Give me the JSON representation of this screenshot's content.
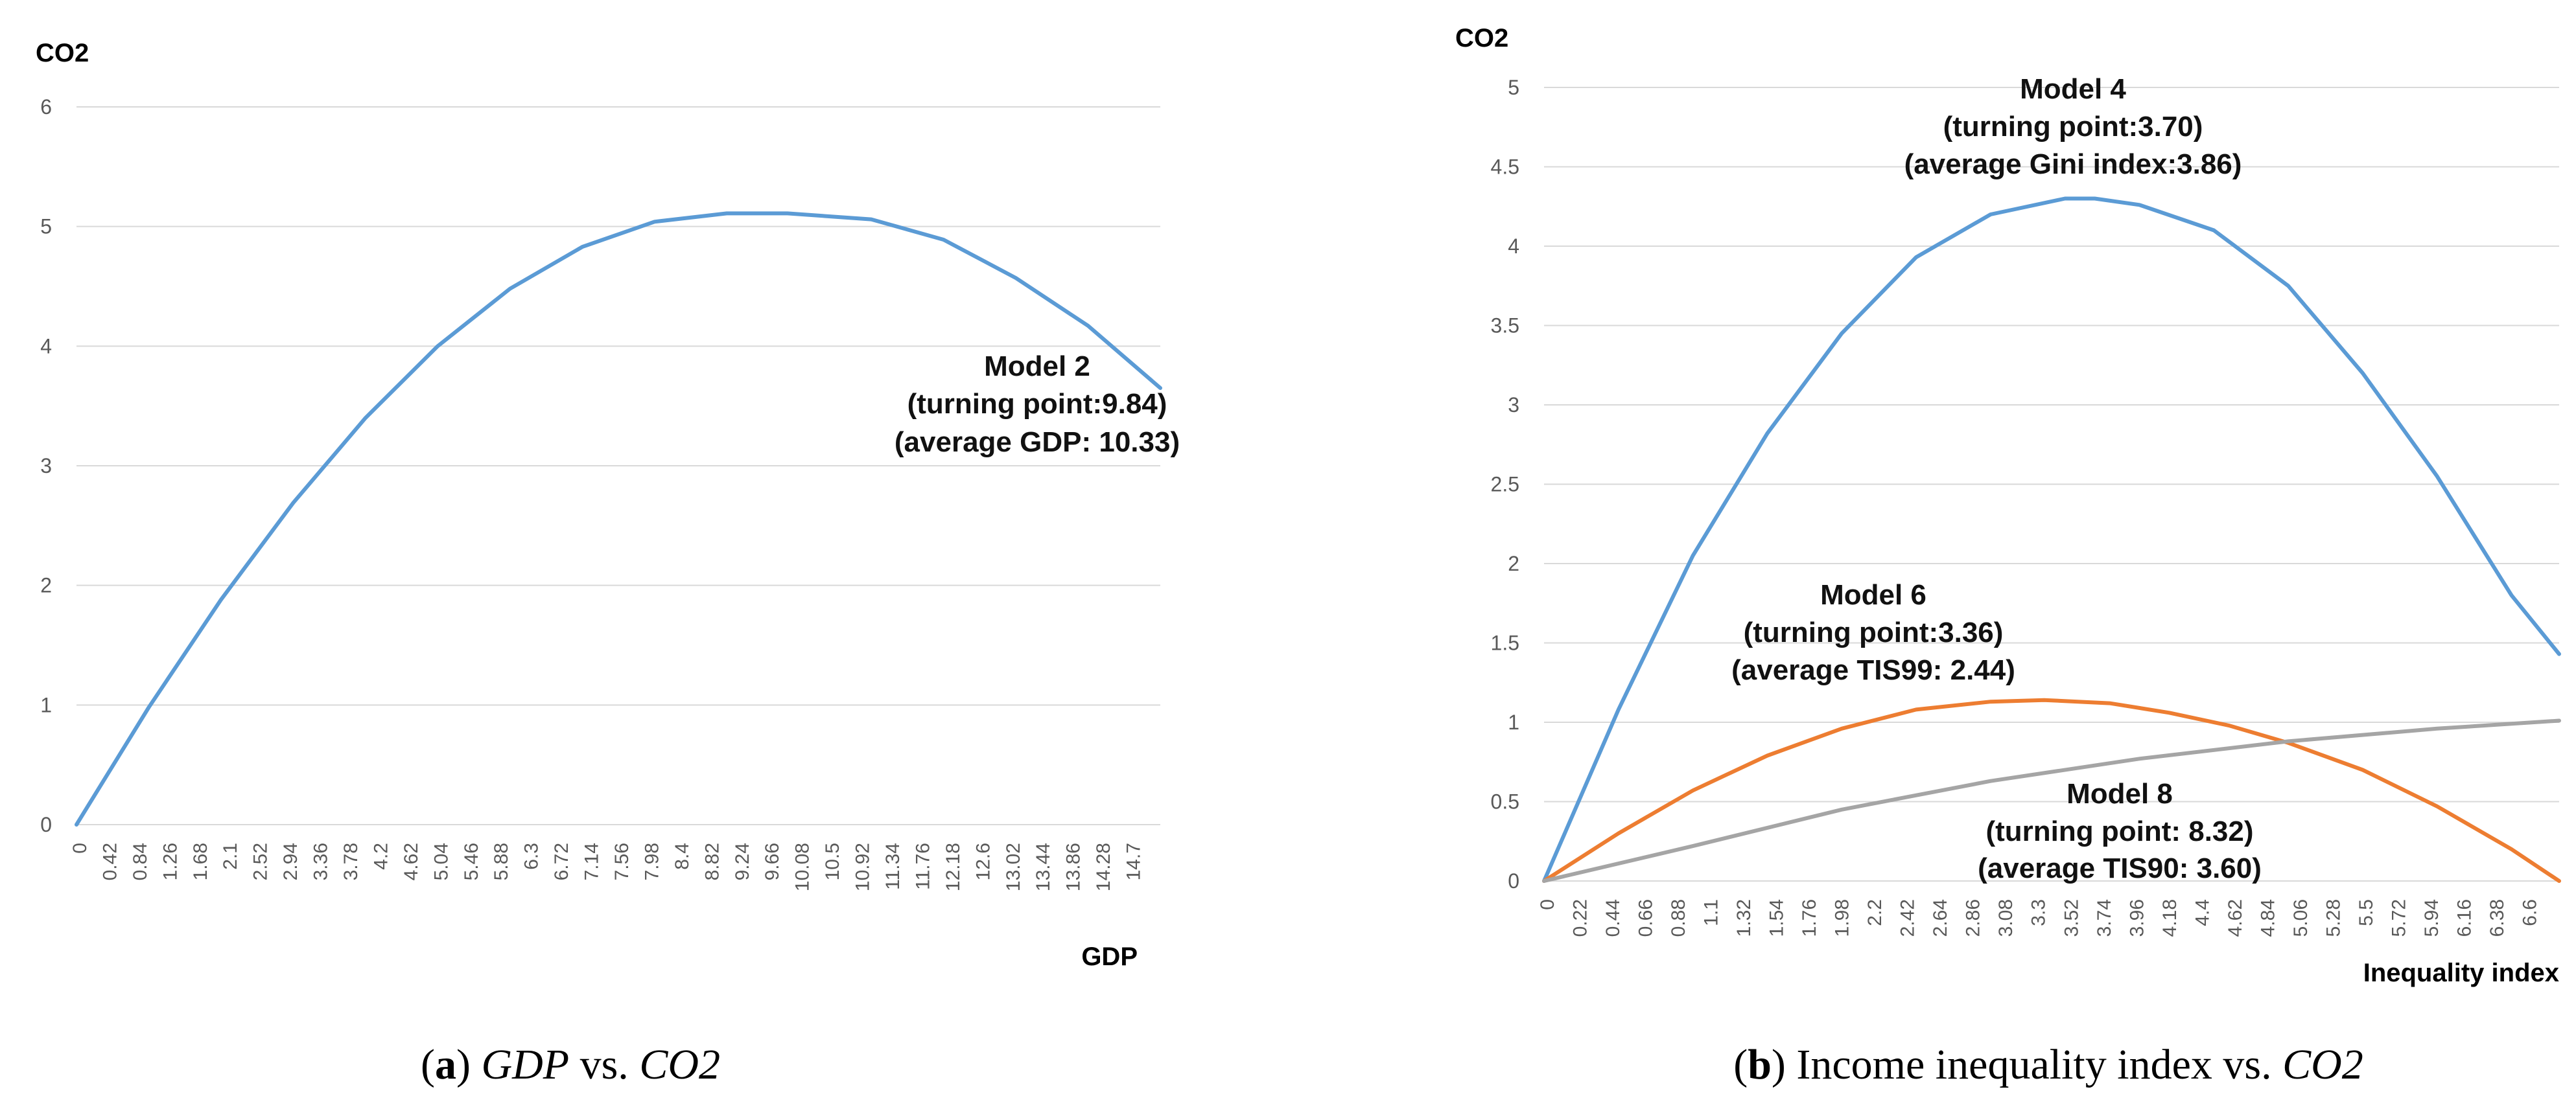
{
  "chart_data": [
    {
      "type": "line",
      "panel_caption": {
        "label": "a",
        "xvar": "GDP",
        "vs": "vs.",
        "yvar": "CO2"
      },
      "ylabel": "CO2",
      "xlabel": "GDP",
      "ylim": [
        0,
        6
      ],
      "yticks": [
        "0",
        "1",
        "2",
        "3",
        "4",
        "5",
        "6"
      ],
      "xticks": [
        "0",
        "0.42",
        "0.84",
        "1.26",
        "1.68",
        "2.1",
        "2.52",
        "2.94",
        "3.36",
        "3.78",
        "4.2",
        "4.62",
        "5.04",
        "5.46",
        "5.88",
        "6.3",
        "6.72",
        "7.14",
        "7.56",
        "7.98",
        "8.4",
        "8.82",
        "9.24",
        "9.66",
        "10.08",
        "10.5",
        "10.92",
        "11.34",
        "11.76",
        "12.18",
        "12.6",
        "13.02",
        "13.44",
        "13.86",
        "14.28",
        "14.7"
      ],
      "grid": true,
      "series": [
        {
          "color": "#5B9BD5",
          "x": [
            0,
            1,
            2,
            3,
            4,
            5,
            6,
            7,
            8,
            9,
            9.84,
            11,
            12,
            13,
            14,
            15
          ],
          "values": [
            0,
            0.98,
            1.88,
            2.69,
            3.4,
            4.0,
            4.48,
            4.83,
            5.04,
            5.11,
            5.11,
            5.06,
            4.89,
            4.57,
            4.17,
            3.65
          ]
        }
      ],
      "annotations": [
        {
          "lines": [
            "Model 2",
            "(turning point:9.84)",
            "(average GDP: 10.33)"
          ]
        }
      ]
    },
    {
      "type": "line",
      "panel_caption": {
        "label": "b",
        "xvar": "Income inequality index",
        "vs": "vs.",
        "yvar": "CO2"
      },
      "ylabel": "CO2",
      "xlabel": "Inequality index",
      "ylim": [
        0,
        5
      ],
      "yticks": [
        "0",
        "0.5",
        "1",
        "1.5",
        "2",
        "2.5",
        "3",
        "3.5",
        "4",
        "4.5",
        "5"
      ],
      "xticks": [
        "0",
        "0.22",
        "0.44",
        "0.66",
        "0.88",
        "1.1",
        "1.32",
        "1.54",
        "1.76",
        "1.98",
        "2.2",
        "2.42",
        "2.64",
        "2.86",
        "3.08",
        "3.3",
        "3.52",
        "3.74",
        "3.96",
        "4.18",
        "4.4",
        "4.62",
        "4.84",
        "5.06",
        "5.28",
        "5.5",
        "5.72",
        "5.94",
        "6.16",
        "6.38",
        "6.6"
      ],
      "grid": true,
      "series": [
        {
          "color": "#5B9BD5",
          "x": [
            0,
            0.5,
            1.0,
            1.5,
            2.0,
            2.5,
            3.0,
            3.5,
            3.7,
            4.0,
            4.5,
            5.0,
            5.5,
            6.0,
            6.5,
            6.82
          ],
          "values": [
            0,
            1.08,
            2.05,
            2.82,
            3.45,
            3.93,
            4.2,
            4.3,
            4.3,
            4.26,
            4.1,
            3.75,
            3.2,
            2.55,
            1.8,
            1.43
          ]
        },
        {
          "color": "#ED7D31",
          "x": [
            0,
            0.5,
            1.0,
            1.5,
            2.0,
            2.5,
            3.0,
            3.36,
            3.8,
            4.2,
            4.6,
            5.0,
            5.5,
            6.0,
            6.5,
            6.82
          ],
          "values": [
            0,
            0.3,
            0.57,
            0.79,
            0.96,
            1.08,
            1.13,
            1.14,
            1.12,
            1.06,
            0.98,
            0.87,
            0.7,
            0.47,
            0.2,
            0
          ]
        },
        {
          "color": "#A5A5A5",
          "x": [
            0,
            1,
            2,
            3,
            4,
            5,
            6,
            6.82
          ],
          "values": [
            0,
            0.22,
            0.45,
            0.63,
            0.77,
            0.88,
            0.96,
            1.01
          ]
        }
      ],
      "annotations": [
        {
          "lines": [
            "Model 4",
            "(turning point:3.70)",
            "(average Gini index:3.86)"
          ]
        },
        {
          "lines": [
            "Model 6",
            "(turning point:3.36)",
            "(average TIS99: 2.44)"
          ]
        },
        {
          "lines": [
            "Model 8",
            "(turning point: 8.32)",
            "(average TIS90: 3.60)"
          ]
        }
      ]
    }
  ]
}
